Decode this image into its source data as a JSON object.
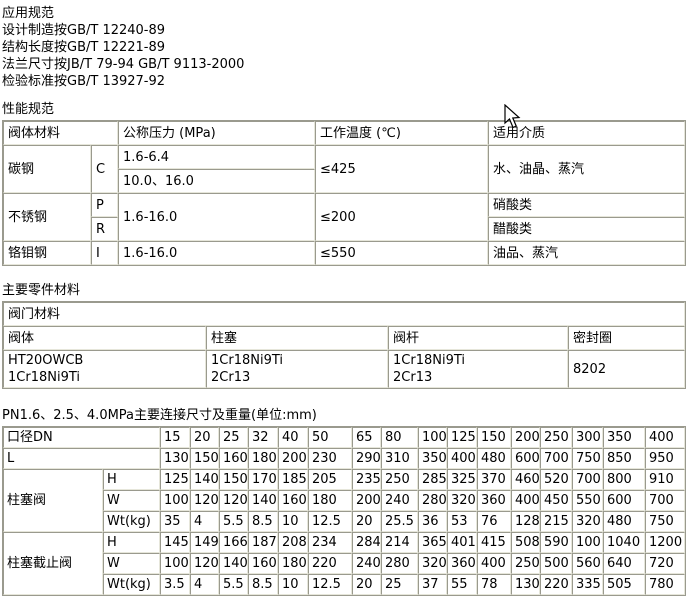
{
  "application": {
    "title": "应用规范",
    "lines": [
      "设计制造按GB/T 12240-89",
      "结构长度按GB/T 12221-89",
      "法兰尺寸按JB/T 79-94 GB/T 9113-2000",
      "检验标准按GB/T 13927-92"
    ]
  },
  "performance": {
    "title": "性能规范",
    "headers": {
      "material": "阀体材料",
      "pressure": "公称压力 (MPa)",
      "temperature": "工作温度 (℃)",
      "media": "适用介质"
    },
    "carbon": {
      "name": "碳钢",
      "code": "C",
      "pressure_a": "1.6-6.4",
      "pressure_b": "10.0、16.0",
      "temperature": "≤425",
      "media": "水、油晶、蒸汽"
    },
    "stainless": {
      "name": "不锈钢",
      "code_a": "P",
      "code_b": "R",
      "pressure": "1.6-16.0",
      "temperature": "≤200",
      "media_a": "硝酸类",
      "media_b": "醋酸类"
    },
    "chromemoly": {
      "name": "铬钼钢",
      "code": "I",
      "pressure": "1.6-16.0",
      "temperature": "≤550",
      "media": "油品、蒸汽"
    }
  },
  "parts": {
    "title": "主要零件材料",
    "group_header": "阀门材料",
    "headers": [
      "阀体",
      "柱塞",
      "阀杆",
      "密封圈"
    ],
    "values": [
      "HT20OWCB\n1Cr18Ni9Ti",
      "1Cr18Ni9Ti\n2Cr13",
      "1Cr18Ni9Ti\n2Cr13",
      "8202"
    ]
  },
  "dimensions": {
    "title": "PN1.6、2.5、4.0MPa主要连接尺寸及重量(单位:mm)",
    "dn_label": "口径DN",
    "length_label": "L",
    "dn": [
      "15",
      "20",
      "25",
      "32",
      "40",
      "50",
      "65",
      "80",
      "100",
      "125",
      "150",
      "200",
      "250",
      "300",
      "350",
      "400"
    ],
    "length": [
      "130",
      "150",
      "160",
      "180",
      "200",
      "230",
      "290",
      "310",
      "350",
      "400",
      "480",
      "600",
      "700",
      "750",
      "850",
      "950"
    ],
    "plunger_valve": {
      "name": "柱塞阀",
      "h_label": "H",
      "w_label": "W",
      "wt_label": "Wt(kg)",
      "h": [
        "125",
        "140",
        "150",
        "170",
        "185",
        "205",
        "235",
        "250",
        "285",
        "325",
        "370",
        "460",
        "520",
        "700",
        "800",
        "910"
      ],
      "w": [
        "100",
        "120",
        "120",
        "140",
        "160",
        "180",
        "200",
        "240",
        "280",
        "320",
        "360",
        "400",
        "450",
        "550",
        "600",
        "700"
      ],
      "wt": [
        "35",
        "4",
        "5.5",
        "8.5",
        "10",
        "12.5",
        "20",
        "25.5",
        "36",
        "53",
        "76",
        "128",
        "215",
        "320",
        "480",
        "750"
      ]
    },
    "plunger_globe_valve": {
      "name": "柱塞截止阀",
      "h_label": "H",
      "w_label": "W",
      "wt_label": "Wt(kg)",
      "h": [
        "145",
        "149",
        "166",
        "187",
        "208",
        "234",
        "284",
        "214",
        "365",
        "401",
        "415",
        "508",
        "590",
        "100",
        "1040",
        "1200"
      ],
      "w": [
        "100",
        "120",
        "140",
        "160",
        "180",
        "220",
        "240",
        "280",
        "320",
        "360",
        "400",
        "250",
        "500",
        "560",
        "640",
        "720"
      ],
      "wt": [
        "3.5",
        "4",
        "5.5",
        "8.5",
        "10",
        "12.5",
        "20",
        "25",
        "37",
        "55",
        "78",
        "130",
        "220",
        "335",
        "505",
        "780"
      ]
    }
  }
}
